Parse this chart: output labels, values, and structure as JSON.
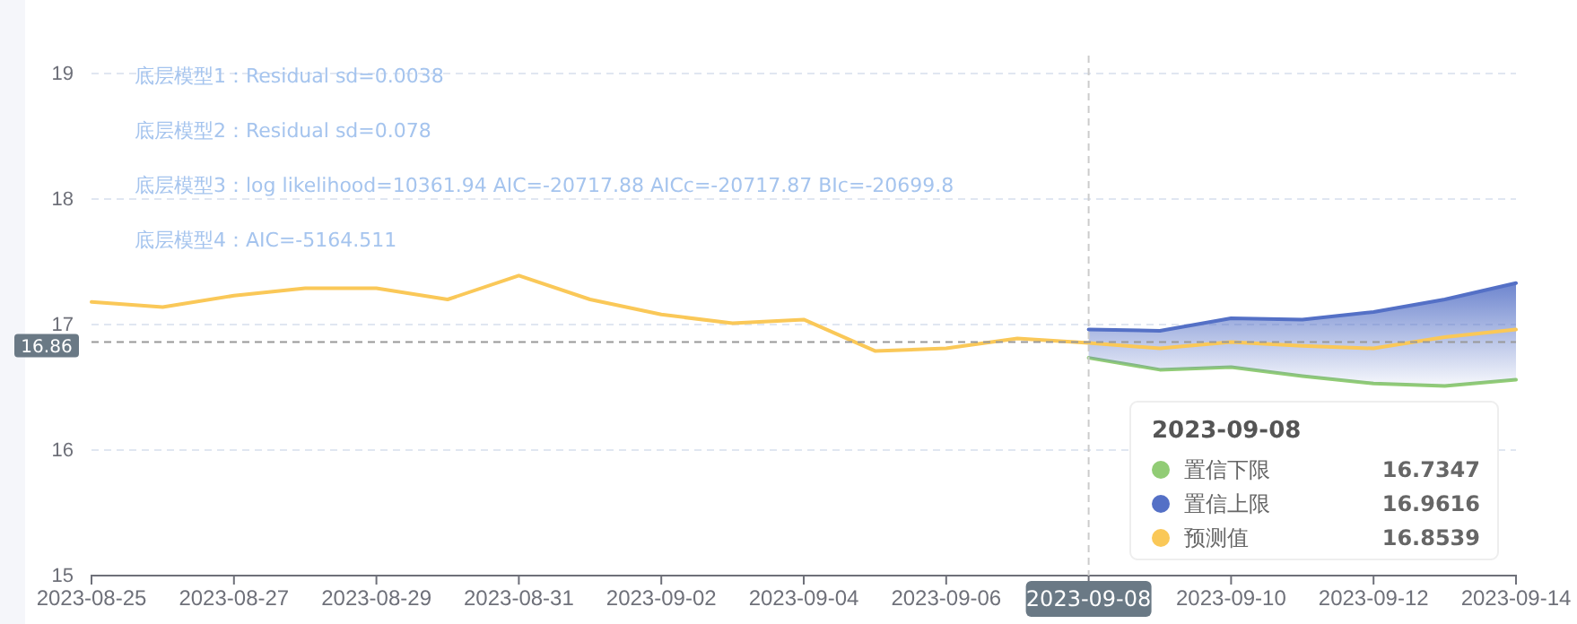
{
  "chart_data": {
    "type": "line",
    "x": [
      "2023-08-25",
      "2023-08-26",
      "2023-08-27",
      "2023-08-28",
      "2023-08-29",
      "2023-08-30",
      "2023-08-31",
      "2023-09-01",
      "2023-09-02",
      "2023-09-03",
      "2023-09-04",
      "2023-09-05",
      "2023-09-06",
      "2023-09-07",
      "2023-09-08",
      "2023-09-09",
      "2023-09-10",
      "2023-09-11",
      "2023-09-12",
      "2023-09-13",
      "2023-09-14"
    ],
    "series": [
      {
        "name": "置信下限",
        "color": "#91cc75",
        "values": [
          null,
          null,
          null,
          null,
          null,
          null,
          null,
          null,
          null,
          null,
          null,
          null,
          null,
          null,
          16.7347,
          16.64,
          16.66,
          16.59,
          16.53,
          16.51,
          16.56
        ]
      },
      {
        "name": "置信上限",
        "type": "area",
        "color": "#5470c6",
        "values": [
          null,
          null,
          null,
          null,
          null,
          null,
          null,
          null,
          null,
          null,
          null,
          null,
          null,
          null,
          16.9616,
          16.95,
          17.05,
          17.04,
          17.1,
          17.2,
          17.33
        ]
      },
      {
        "name": "预测值",
        "color": "#fac858",
        "values": [
          17.18,
          17.14,
          17.23,
          17.29,
          17.29,
          17.2,
          17.39,
          17.2,
          17.08,
          17.01,
          17.04,
          16.79,
          16.81,
          16.89,
          16.8539,
          16.81,
          16.86,
          16.83,
          16.81,
          16.9,
          16.96
        ]
      }
    ],
    "xlim": [
      "2023-08-25",
      "2023-09-14"
    ],
    "xticks": [
      "2023-08-25",
      "2023-08-27",
      "2023-08-29",
      "2023-08-31",
      "2023-09-02",
      "2023-09-04",
      "2023-09-06",
      "2023-09-08",
      "2023-09-10",
      "2023-09-12",
      "2023-09-14"
    ],
    "ylim": [
      15,
      19
    ],
    "yticks": [
      15,
      16,
      17,
      18,
      19
    ],
    "grid": "y",
    "ref_lines": [
      {
        "axis": "y",
        "value": 16.86,
        "label": "16.86"
      },
      {
        "axis": "x",
        "value": "2023-09-08",
        "label": "2023-09-08"
      }
    ],
    "legend": "bottom right",
    "legend_title": "2023-09-08",
    "annotations": [
      "底层模型1：Residual sd=0.0038",
      "底层模型2：Residual sd=0.078",
      "底层模型3：log likelihood=10361.94 AIC=-20717.88 AICc=-20717.87 BIc=-20699.8",
      "底层模型4：AIC=-5164.511",
      "16.7347",
      "16.9616",
      "16.8539"
    ]
  }
}
